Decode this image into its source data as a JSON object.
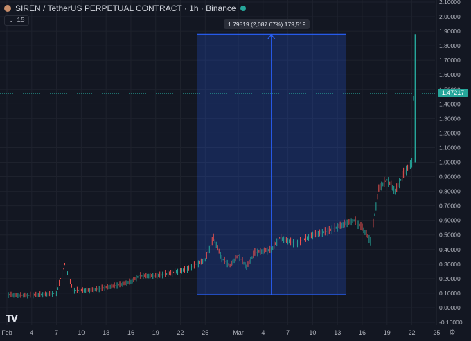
{
  "header": {
    "title": "SIREN / TetherUS PERPETUAL CONTRACT · 1h · Binance",
    "interval_value": "15",
    "interval_icon": "chevron-down-icon"
  },
  "last_price_label": "1.47217",
  "measure_label": "1.79519 (2,087.67%) 179,519",
  "chart_data": {
    "type": "line",
    "title": "SIREN / TetherUS PERPETUAL CONTRACT · 1h · Binance",
    "xlabel": "",
    "ylabel": "",
    "x_ticks": [
      "Feb",
      "4",
      "7",
      "10",
      "13",
      "16",
      "19",
      "22",
      "25",
      "Mar",
      "4",
      "7",
      "10",
      "13",
      "16",
      "19",
      "22",
      "25"
    ],
    "y_ticks": [
      "2.10000",
      "2.00000",
      "1.90000",
      "1.80000",
      "1.70000",
      "1.60000",
      "1.50000",
      "1.40000",
      "1.30000",
      "1.20000",
      "1.10000",
      "1.00000",
      "0.90000",
      "0.80000",
      "0.70000",
      "0.60000",
      "0.50000",
      "0.40000",
      "0.30000",
      "0.20000",
      "0.10000",
      "0.00000",
      "-0.10000"
    ],
    "ylim": [
      -0.1,
      2.1
    ],
    "last_price": 1.47217,
    "series": [
      {
        "x": [
          "Feb 1",
          "Feb 3",
          "Feb 5",
          "Feb 7",
          "Feb 8",
          "Feb 9",
          "Feb 11",
          "Feb 14",
          "Feb 16",
          "Feb 17",
          "Feb 19",
          "Feb 21",
          "Feb 23",
          "Feb 24",
          "Feb 25",
          "Feb 26",
          "Feb 27",
          "Feb 28",
          "Mar 1",
          "Mar 2",
          "Mar 3",
          "Mar 5",
          "Mar 6",
          "Mar 8",
          "Mar 10",
          "Mar 12",
          "Mar 14",
          "Mar 15",
          "Mar 16",
          "Mar 17",
          "Mar 18",
          "Mar 19",
          "Mar 20",
          "Mar 21",
          "Mar 22",
          "Mar 22 late"
        ],
        "values": [
          0.09,
          0.085,
          0.09,
          0.1,
          0.3,
          0.12,
          0.12,
          0.15,
          0.18,
          0.22,
          0.22,
          0.24,
          0.27,
          0.3,
          0.33,
          0.48,
          0.34,
          0.29,
          0.36,
          0.28,
          0.38,
          0.4,
          0.48,
          0.44,
          0.5,
          0.53,
          0.58,
          0.6,
          0.55,
          0.46,
          0.82,
          0.88,
          0.8,
          0.92,
          1.0,
          1.88
        ]
      }
    ],
    "measure": {
      "x_start": "Feb 24",
      "x_end": "Mar 14",
      "y_low": 0.09,
      "y_high": 1.88,
      "change": "1.79519 (2,087.67%)",
      "bars": "179,519"
    },
    "grid": true,
    "colors": {
      "up": "#26a69a",
      "down": "#ef5350",
      "measure": "#2962ff",
      "last_price": "#26a69a"
    }
  },
  "logo": "TV",
  "settings_icon": "gear-icon"
}
